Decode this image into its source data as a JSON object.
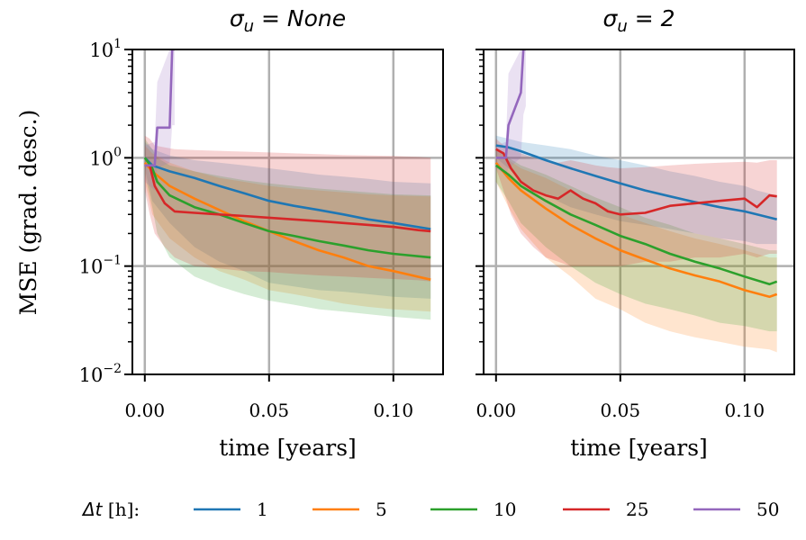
{
  "chart_data": [
    {
      "type": "line",
      "title_prefix": "σ",
      "title_sub": "u",
      "title_rest": " = None",
      "xlabel": "time [years]",
      "ylabel": "MSE (grad. desc.)",
      "xlim": [
        -0.005,
        0.12
      ],
      "ylim_log10": [
        -2,
        1
      ],
      "yscale": "log",
      "xticks": [
        "0.00",
        "0.05",
        "0.10"
      ],
      "xtick_values": [
        0.0,
        0.05,
        0.1
      ],
      "yticks": [
        {
          "base": "10",
          "exp": "1",
          "log": 1
        },
        {
          "base": "10",
          "exp": "0",
          "log": 0
        },
        {
          "base": "10",
          "exp": "−1",
          "log": -1
        },
        {
          "base": "10",
          "exp": "−2",
          "log": -2
        }
      ],
      "grid": true,
      "series": [
        {
          "name": "1",
          "color": "#1f77b4",
          "x": [
            0.0,
            0.003,
            0.01,
            0.02,
            0.03,
            0.04,
            0.05,
            0.06,
            0.07,
            0.08,
            0.09,
            0.1,
            0.115
          ],
          "y": [
            1.0,
            0.85,
            0.75,
            0.65,
            0.55,
            0.47,
            0.4,
            0.36,
            0.33,
            0.3,
            0.27,
            0.25,
            0.22
          ],
          "band_low": [
            0.8,
            0.4,
            0.25,
            0.15,
            0.11,
            0.09,
            0.07,
            0.065,
            0.06,
            0.058,
            0.055,
            0.052,
            0.05
          ],
          "band_high": [
            1.4,
            1.2,
            1.05,
            0.95,
            0.9,
            0.85,
            0.8,
            0.75,
            0.7,
            0.67,
            0.64,
            0.6,
            0.58
          ]
        },
        {
          "name": "5",
          "color": "#ff7f0e",
          "x": [
            0.0,
            0.003,
            0.01,
            0.02,
            0.03,
            0.04,
            0.05,
            0.06,
            0.07,
            0.08,
            0.09,
            0.1,
            0.115
          ],
          "y": [
            0.9,
            0.75,
            0.55,
            0.42,
            0.33,
            0.26,
            0.21,
            0.17,
            0.14,
            0.12,
            0.1,
            0.09,
            0.075
          ],
          "band_low": [
            0.6,
            0.3,
            0.18,
            0.12,
            0.09,
            0.075,
            0.06,
            0.055,
            0.05,
            0.045,
            0.042,
            0.04,
            0.038
          ],
          "band_high": [
            1.3,
            1.1,
            0.9,
            0.75,
            0.65,
            0.6,
            0.55,
            0.52,
            0.5,
            0.48,
            0.46,
            0.45,
            0.44
          ]
        },
        {
          "name": "10",
          "color": "#2ca02c",
          "x": [
            0.0,
            0.003,
            0.005,
            0.01,
            0.02,
            0.03,
            0.04,
            0.05,
            0.06,
            0.07,
            0.08,
            0.09,
            0.1,
            0.115
          ],
          "y": [
            1.0,
            0.8,
            0.6,
            0.45,
            0.35,
            0.3,
            0.25,
            0.21,
            0.19,
            0.17,
            0.155,
            0.14,
            0.13,
            0.12
          ],
          "band_low": [
            0.7,
            0.35,
            0.2,
            0.12,
            0.08,
            0.065,
            0.055,
            0.048,
            0.044,
            0.04,
            0.038,
            0.036,
            0.034,
            0.032
          ],
          "band_high": [
            1.5,
            1.2,
            1.0,
            0.85,
            0.75,
            0.68,
            0.62,
            0.58,
            0.55,
            0.52,
            0.5,
            0.48,
            0.46,
            0.45
          ]
        },
        {
          "name": "25",
          "color": "#d62728",
          "x": [
            0.0,
            0.002,
            0.004,
            0.008,
            0.012,
            0.02,
            0.03,
            0.04,
            0.05,
            0.06,
            0.07,
            0.08,
            0.09,
            0.1,
            0.11,
            0.115
          ],
          "y": [
            0.85,
            0.85,
            0.55,
            0.38,
            0.32,
            0.31,
            0.3,
            0.29,
            0.28,
            0.27,
            0.26,
            0.25,
            0.24,
            0.23,
            0.215,
            0.21
          ],
          "band_low": [
            0.5,
            0.3,
            0.2,
            0.15,
            0.12,
            0.1,
            0.095,
            0.09,
            0.088,
            0.085,
            0.082,
            0.08,
            0.078,
            0.076,
            0.074,
            0.072
          ],
          "band_high": [
            1.6,
            1.5,
            1.3,
            1.25,
            1.2,
            1.18,
            1.16,
            1.14,
            1.12,
            1.1,
            1.08,
            1.06,
            1.05,
            1.04,
            1.02,
            1.0
          ]
        },
        {
          "name": "50",
          "color": "#9467bd",
          "x": [
            0.0,
            0.004,
            0.005,
            0.01,
            0.011,
            0.012
          ],
          "y": [
            0.85,
            0.85,
            1.9,
            1.9,
            10.0,
            10.0
          ],
          "band_low": [
            0.6,
            0.5,
            0.8,
            0.9,
            2.0,
            2.0
          ],
          "band_high": [
            1.3,
            1.4,
            5.0,
            10.0,
            10.0,
            10.0
          ]
        }
      ]
    },
    {
      "type": "line",
      "title_prefix": "σ",
      "title_sub": "u",
      "title_rest": " = 2",
      "xlabel": "time [years]",
      "ylabel": "",
      "xlim": [
        -0.005,
        0.12
      ],
      "ylim_log10": [
        -2,
        1
      ],
      "yscale": "log",
      "xticks": [
        "0.00",
        "0.05",
        "0.10"
      ],
      "xtick_values": [
        0.0,
        0.05,
        0.1
      ],
      "grid": true,
      "series": [
        {
          "name": "1",
          "color": "#1f77b4",
          "x": [
            0.0,
            0.005,
            0.01,
            0.02,
            0.03,
            0.04,
            0.05,
            0.06,
            0.07,
            0.08,
            0.09,
            0.1,
            0.105,
            0.113
          ],
          "y": [
            1.3,
            1.25,
            1.15,
            0.95,
            0.8,
            0.68,
            0.58,
            0.5,
            0.44,
            0.39,
            0.35,
            0.32,
            0.3,
            0.27
          ],
          "band_low": [
            1.0,
            0.8,
            0.6,
            0.45,
            0.35,
            0.3,
            0.26,
            0.24,
            0.22,
            0.2,
            0.18,
            0.17,
            0.16,
            0.16
          ],
          "band_high": [
            1.6,
            1.5,
            1.4,
            1.3,
            1.2,
            1.05,
            0.95,
            0.85,
            0.75,
            0.68,
            0.6,
            0.55,
            0.5,
            0.45
          ]
        },
        {
          "name": "5",
          "color": "#ff7f0e",
          "x": [
            0.0,
            0.005,
            0.01,
            0.02,
            0.03,
            0.04,
            0.05,
            0.06,
            0.07,
            0.08,
            0.09,
            0.1,
            0.11,
            0.113
          ],
          "y": [
            0.9,
            0.65,
            0.5,
            0.34,
            0.24,
            0.18,
            0.14,
            0.115,
            0.095,
            0.082,
            0.072,
            0.06,
            0.052,
            0.055
          ],
          "band_low": [
            0.6,
            0.35,
            0.22,
            0.12,
            0.08,
            0.05,
            0.04,
            0.03,
            0.025,
            0.022,
            0.02,
            0.018,
            0.017,
            0.016
          ],
          "band_high": [
            1.2,
            0.95,
            0.8,
            0.65,
            0.5,
            0.38,
            0.3,
            0.25,
            0.21,
            0.18,
            0.16,
            0.14,
            0.12,
            0.12
          ]
        },
        {
          "name": "10",
          "color": "#2ca02c",
          "x": [
            0.0,
            0.005,
            0.01,
            0.02,
            0.03,
            0.04,
            0.05,
            0.06,
            0.07,
            0.08,
            0.09,
            0.1,
            0.11,
            0.113
          ],
          "y": [
            0.85,
            0.7,
            0.55,
            0.4,
            0.3,
            0.24,
            0.19,
            0.16,
            0.13,
            0.11,
            0.095,
            0.08,
            0.068,
            0.072
          ],
          "band_low": [
            0.6,
            0.4,
            0.25,
            0.15,
            0.1,
            0.07,
            0.055,
            0.045,
            0.04,
            0.035,
            0.03,
            0.028,
            0.025,
            0.025
          ],
          "band_high": [
            1.2,
            1.0,
            0.85,
            0.7,
            0.55,
            0.43,
            0.35,
            0.28,
            0.24,
            0.2,
            0.18,
            0.16,
            0.14,
            0.14
          ]
        },
        {
          "name": "25",
          "color": "#d62728",
          "x": [
            0.0,
            0.003,
            0.006,
            0.01,
            0.015,
            0.02,
            0.025,
            0.03,
            0.035,
            0.04,
            0.045,
            0.05,
            0.06,
            0.07,
            0.08,
            0.09,
            0.1,
            0.105,
            0.11,
            0.113
          ],
          "y": [
            1.2,
            1.1,
            0.8,
            0.6,
            0.5,
            0.45,
            0.42,
            0.5,
            0.42,
            0.38,
            0.32,
            0.3,
            0.31,
            0.36,
            0.38,
            0.4,
            0.42,
            0.35,
            0.45,
            0.44
          ],
          "band_low": [
            0.8,
            0.5,
            0.3,
            0.2,
            0.15,
            0.12,
            0.11,
            0.1,
            0.1,
            0.1,
            0.1,
            0.1,
            0.11,
            0.11,
            0.12,
            0.12,
            0.13,
            0.12,
            0.13,
            0.13
          ],
          "band_high": [
            1.5,
            1.3,
            1.2,
            1.1,
            1.0,
            0.95,
            0.9,
            0.95,
            0.9,
            0.85,
            0.82,
            0.8,
            0.82,
            0.85,
            0.88,
            0.9,
            0.92,
            0.9,
            0.95,
            0.95
          ]
        },
        {
          "name": "50",
          "color": "#9467bd",
          "x": [
            0.0,
            0.004,
            0.005,
            0.01,
            0.011,
            0.012
          ],
          "y": [
            1.0,
            1.0,
            2.0,
            4.0,
            10.0,
            10.0
          ],
          "band_low": [
            0.8,
            0.7,
            0.8,
            1.0,
            2.5,
            3.0
          ],
          "band_high": [
            1.3,
            1.4,
            6.0,
            10.0,
            10.0,
            10.0
          ]
        }
      ]
    }
  ],
  "legend": {
    "title_symbol": "Δt",
    "title_unit": " [h]:",
    "items": [
      {
        "label": "1",
        "color": "#1f77b4"
      },
      {
        "label": "5",
        "color": "#ff7f0e"
      },
      {
        "label": "10",
        "color": "#2ca02c"
      },
      {
        "label": "25",
        "color": "#d62728"
      },
      {
        "label": "50",
        "color": "#9467bd"
      }
    ]
  }
}
